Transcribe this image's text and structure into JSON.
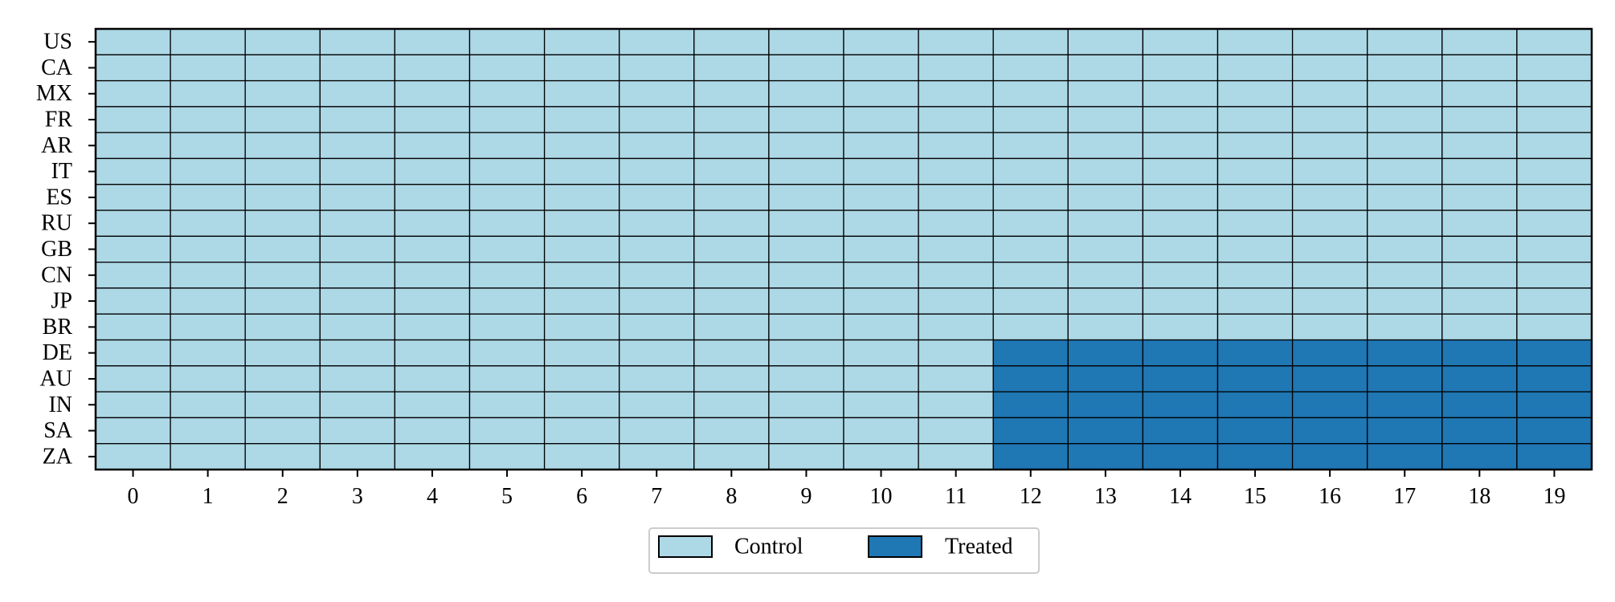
{
  "chart_data": {
    "type": "heatmap",
    "title": "",
    "xlabel": "",
    "ylabel": "",
    "x": [
      0,
      1,
      2,
      3,
      4,
      5,
      6,
      7,
      8,
      9,
      10,
      11,
      12,
      13,
      14,
      15,
      16,
      17,
      18,
      19
    ],
    "y": [
      "US",
      "CA",
      "MX",
      "FR",
      "AR",
      "IT",
      "ES",
      "RU",
      "GB",
      "CN",
      "JP",
      "BR",
      "DE",
      "AU",
      "IN",
      "SA",
      "ZA"
    ],
    "treatment_start": {
      "DE": 12,
      "AU": 12,
      "IN": 12,
      "SA": 12,
      "ZA": 12
    },
    "grid": true,
    "legend": {
      "placement": "bottom-center",
      "entries": [
        {
          "name": "Control",
          "color": "#add8e6"
        },
        {
          "name": "Treated",
          "color": "#1f77b4"
        }
      ]
    },
    "colors": {
      "control": "#add8e6",
      "treated": "#1f77b4",
      "cell_border": "#000000"
    }
  }
}
